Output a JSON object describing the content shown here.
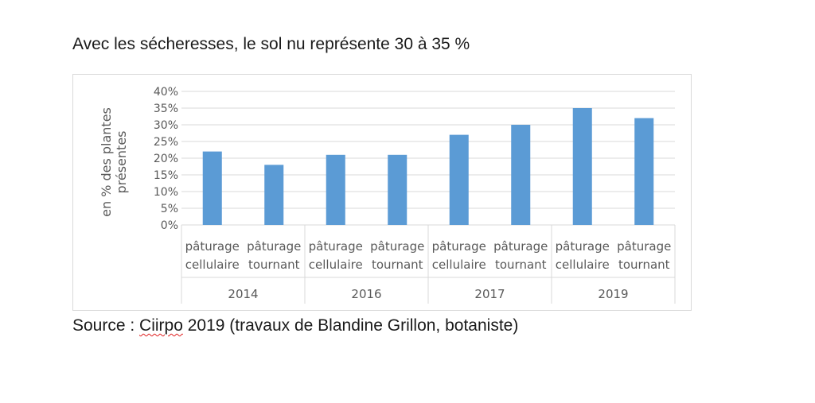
{
  "title": "Avec les sécheresses, le sol nu représente 30 à 35 %",
  "source": {
    "prefix": "Source : ",
    "org": "Ciirpo",
    "rest": " 2019 (travaux de Blandine Grillon, botaniste)"
  },
  "colors": {
    "bar": "#5b9bd5",
    "grid": "#d9d9d9",
    "text": "#595959"
  },
  "chart_data": {
    "type": "bar",
    "ylabel": "en % des plantes présentes",
    "ylabel_lines": [
      "en % des plantes",
      "présentes"
    ],
    "ylim": [
      0,
      40
    ],
    "ytick_labels": [
      "0%",
      "5%",
      "10%",
      "15%",
      "20%",
      "25%",
      "30%",
      "35%",
      "40%"
    ],
    "grid": true,
    "legend": "none",
    "groups": [
      {
        "label": "2014",
        "categories": [
          {
            "label": [
              "pâturage",
              "cellulaire"
            ],
            "value": 22
          },
          {
            "label": [
              "pâturage",
              "tournant"
            ],
            "value": 18
          }
        ]
      },
      {
        "label": "2016",
        "categories": [
          {
            "label": [
              "pâturage",
              "cellulaire"
            ],
            "value": 21
          },
          {
            "label": [
              "pâturage",
              "tournant"
            ],
            "value": 21
          }
        ]
      },
      {
        "label": "2017",
        "categories": [
          {
            "label": [
              "pâturage",
              "cellulaire"
            ],
            "value": 27
          },
          {
            "label": [
              "pâturage",
              "tournant"
            ],
            "value": 30
          }
        ]
      },
      {
        "label": "2019",
        "categories": [
          {
            "label": [
              "pâturage",
              "cellulaire"
            ],
            "value": 35
          },
          {
            "label": [
              "pâturage",
              "tournant"
            ],
            "value": 32
          }
        ]
      }
    ]
  }
}
